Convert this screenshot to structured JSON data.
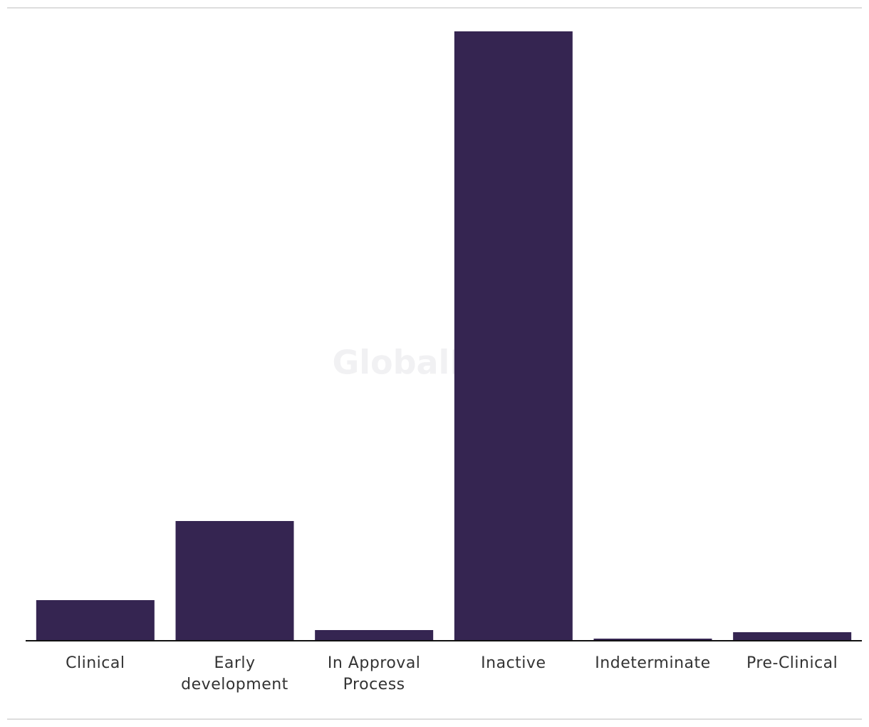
{
  "chart_data": {
    "type": "bar",
    "watermark": "GlobalData",
    "categories": [
      "Clinical",
      "Early development",
      "In Approval Process",
      "Inactive",
      "Indeterminate",
      "Pre-Clinical"
    ],
    "values": [
      19,
      56,
      5,
      285,
      1,
      4
    ],
    "color": "#352551"
  }
}
